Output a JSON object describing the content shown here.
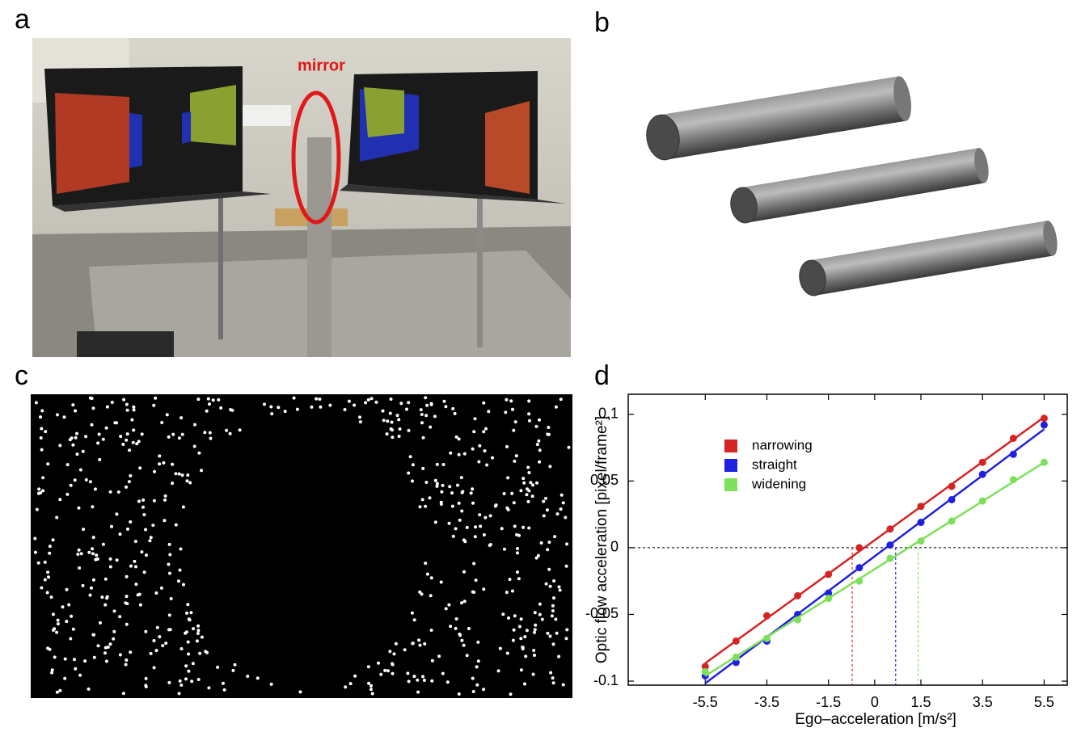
{
  "panel_labels": [
    "a",
    "b",
    "c",
    "d"
  ],
  "photo_annotation": "mirror",
  "chart_data": {
    "type": "scatter",
    "xlabel": "Ego–acceleration [m/s²]",
    "ylabel": "Optic flow acceleration [pixel/frame²]",
    "x": [
      -5.5,
      -4.5,
      -3.5,
      -2.5,
      -1.5,
      -0.5,
      0.5,
      1.5,
      2.5,
      3.5,
      4.5,
      5.5
    ],
    "series": [
      {
        "name": "narrowing",
        "color": "#d62424",
        "values": [
          -0.089,
          -0.07,
          -0.051,
          -0.036,
          -0.02,
          0,
          0.014,
          0.031,
          0.046,
          0.064,
          0.082,
          0.097
        ],
        "x_intercept": -0.73
      },
      {
        "name": "straight",
        "color": "#2020e0",
        "values": [
          -0.096,
          -0.086,
          -0.07,
          -0.05,
          -0.034,
          -0.015,
          0.002,
          0.019,
          0.036,
          0.055,
          0.07,
          0.092
        ],
        "x_intercept": 0.68
      },
      {
        "name": "widening",
        "color": "#7ee05a",
        "values": [
          -0.093,
          -0.082,
          -0.068,
          -0.054,
          -0.038,
          -0.025,
          -0.008,
          0.005,
          0.02,
          0.035,
          0.051,
          0.064
        ],
        "x_intercept": 1.41
      }
    ],
    "xlim": [
      -8,
      6.25
    ],
    "ylim": [
      -0.103,
      0.115
    ],
    "xticks": [
      -5.5,
      -3.5,
      -1.5,
      0,
      1.5,
      3.5,
      5.5
    ],
    "yticks": [
      -0.1,
      -0.05,
      0,
      0.05,
      0.1
    ],
    "zero_line": true,
    "legend": "upper left"
  }
}
